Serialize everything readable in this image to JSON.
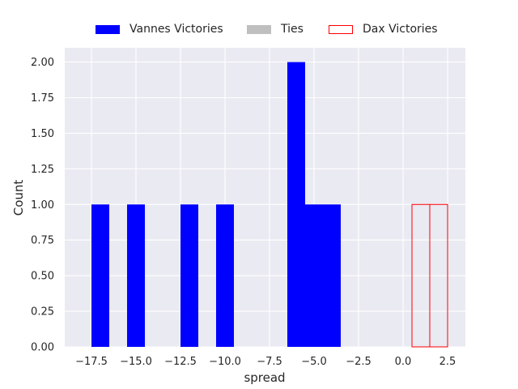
{
  "chart_data": {
    "type": "bar",
    "xlabel": "spread",
    "ylabel": "Count",
    "xlim": [
      -19.0,
      3.5
    ],
    "ylim": [
      0,
      2.1
    ],
    "x_ticks": [
      -17.5,
      -15.0,
      -12.5,
      -10.0,
      -7.5,
      -5.0,
      -2.5,
      0.0,
      2.5
    ],
    "x_tick_labels": [
      "−17.5",
      "−15.0",
      "−12.5",
      "−10.0",
      "−7.5",
      "−5.0",
      "−2.5",
      "0.0",
      "2.5"
    ],
    "y_ticks": [
      0,
      0.25,
      0.5,
      0.75,
      1.0,
      1.25,
      1.5,
      1.75,
      2.0
    ],
    "y_tick_labels": [
      "0.00",
      "0.25",
      "0.50",
      "0.75",
      "1.00",
      "1.25",
      "1.50",
      "1.75",
      "2.00"
    ],
    "grid": true,
    "legend_position": "top-center",
    "series": [
      {
        "name": "Vannes Victories",
        "style": "filled",
        "color": "#0000ff",
        "bins": [
          {
            "x0": -17.5,
            "x1": -16.5,
            "count": 1
          },
          {
            "x0": -15.5,
            "x1": -14.5,
            "count": 1
          },
          {
            "x0": -12.5,
            "x1": -11.5,
            "count": 1
          },
          {
            "x0": -10.5,
            "x1": -9.5,
            "count": 1
          },
          {
            "x0": -6.5,
            "x1": -5.5,
            "count": 2
          },
          {
            "x0": -5.5,
            "x1": -4.5,
            "count": 1
          },
          {
            "x0": -4.5,
            "x1": -3.5,
            "count": 1
          }
        ]
      },
      {
        "name": "Ties",
        "style": "filled",
        "color": "#bfbfbf",
        "bins": []
      },
      {
        "name": "Dax Victories",
        "style": "outline",
        "color": "#ff0000",
        "bins": [
          {
            "x0": 0.5,
            "x1": 1.5,
            "count": 1
          },
          {
            "x0": 1.5,
            "x1": 2.5,
            "count": 1
          }
        ]
      }
    ],
    "colors": {
      "plot_background": "#eaeaf2",
      "grid": "#ffffff",
      "text": "#262626"
    }
  }
}
